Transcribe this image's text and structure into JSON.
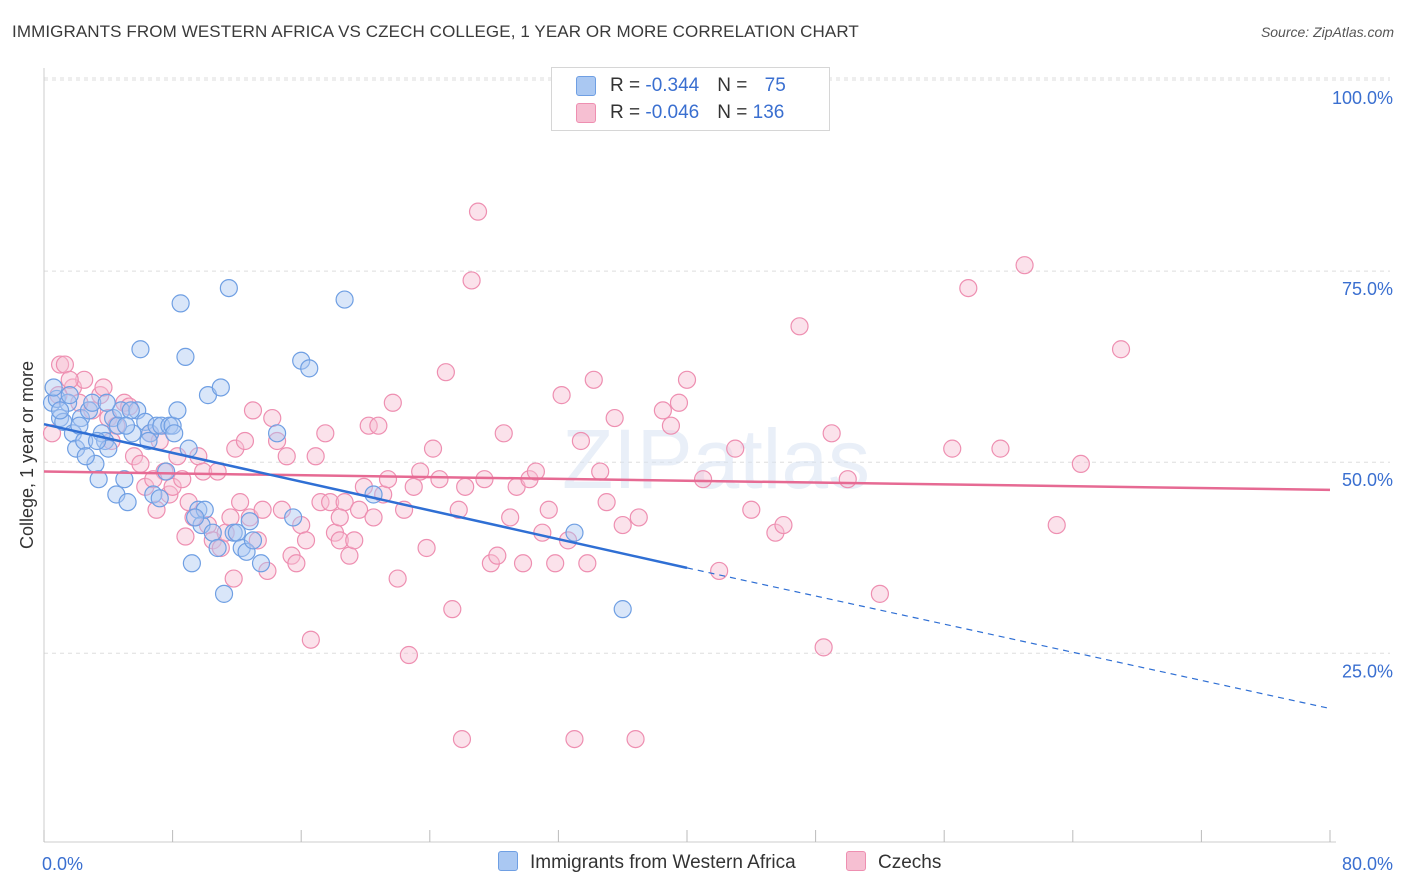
{
  "title": "IMMIGRANTS FROM WESTERN AFRICA VS CZECH COLLEGE, 1 YEAR OR MORE CORRELATION CHART",
  "source": "Source: ZipAtlas.com",
  "watermark": "ZIPatlas",
  "legend": {
    "rows": [
      {
        "r_label": "R = ",
        "r_value": "-0.344",
        "n_label": "N = ",
        "n_value": "75"
      },
      {
        "r_label": "R = ",
        "r_value": "-0.046",
        "n_label": "N = ",
        "n_value": "136"
      }
    ]
  },
  "colors": {
    "blue_fill": "#aac8f2",
    "blue_stroke": "#6f9fe3",
    "blue_line": "#2f6fd4",
    "pink_fill": "#f6bfd2",
    "pink_stroke": "#ee8fb1",
    "pink_line": "#e66a93",
    "axis_label": "#3a6fd0",
    "grid": "#dddddd"
  },
  "chart_data": {
    "type": "scatter",
    "title": "IMMIGRANTS FROM WESTERN AFRICA VS CZECH COLLEGE, 1 YEAR OR MORE CORRELATION CHART",
    "xlabel": "",
    "ylabel": "College, 1 year or more",
    "xlim": [
      0,
      80
    ],
    "ylim": [
      0,
      105
    ],
    "x_tick_labels": [
      "0.0%",
      "80.0%"
    ],
    "y_tick_labels": [
      "25.0%",
      "50.0%",
      "75.0%",
      "100.0%"
    ],
    "y_ticks": [
      25,
      50,
      75,
      100
    ],
    "grid": true,
    "legend_placement": "top-center",
    "series": [
      {
        "name": "Immigrants from Western Africa",
        "color": "blue",
        "trend": {
          "x0": 0,
          "y0": 57.2,
          "x1": 40,
          "y1": 38.4,
          "dash_to_x": 80,
          "dash_to_y": 20.0
        },
        "points": [
          [
            0.5,
            60
          ],
          [
            0.8,
            60.5
          ],
          [
            1.0,
            58
          ],
          [
            1.2,
            57.5
          ],
          [
            1.5,
            60
          ],
          [
            1.8,
            56
          ],
          [
            2.0,
            54
          ],
          [
            2.3,
            58
          ],
          [
            2.5,
            55
          ],
          [
            2.8,
            59
          ],
          [
            3.0,
            60
          ],
          [
            3.2,
            52
          ],
          [
            3.4,
            50
          ],
          [
            3.6,
            56
          ],
          [
            3.8,
            55
          ],
          [
            4.0,
            54
          ],
          [
            4.3,
            58
          ],
          [
            4.5,
            48
          ],
          [
            4.8,
            59
          ],
          [
            5.0,
            50
          ],
          [
            5.2,
            47
          ],
          [
            5.5,
            56
          ],
          [
            5.8,
            59
          ],
          [
            6.0,
            67
          ],
          [
            6.3,
            57.5
          ],
          [
            6.6,
            56
          ],
          [
            6.8,
            48
          ],
          [
            7.0,
            57
          ],
          [
            7.3,
            57
          ],
          [
            7.6,
            51
          ],
          [
            7.8,
            57
          ],
          [
            8.0,
            57
          ],
          [
            8.3,
            59
          ],
          [
            8.5,
            73
          ],
          [
            8.8,
            66
          ],
          [
            9.0,
            54
          ],
          [
            9.2,
            39
          ],
          [
            9.6,
            46
          ],
          [
            9.8,
            44
          ],
          [
            10.0,
            46
          ],
          [
            10.2,
            61
          ],
          [
            10.5,
            43
          ],
          [
            10.8,
            41
          ],
          [
            11.0,
            62
          ],
          [
            11.2,
            35
          ],
          [
            11.5,
            75
          ],
          [
            11.8,
            43
          ],
          [
            12.0,
            43
          ],
          [
            12.3,
            41
          ],
          [
            12.6,
            40.5
          ],
          [
            13.0,
            42
          ],
          [
            13.5,
            39
          ],
          [
            14.5,
            56
          ],
          [
            15.5,
            45
          ],
          [
            16.0,
            65.5
          ],
          [
            16.5,
            64.5
          ],
          [
            18.7,
            73.5
          ],
          [
            20.5,
            48
          ],
          [
            33.0,
            43
          ],
          [
            36.0,
            33
          ],
          [
            1.0,
            59
          ],
          [
            2.2,
            57
          ],
          [
            3.3,
            55
          ],
          [
            4.6,
            57
          ],
          [
            5.4,
            59
          ],
          [
            6.5,
            55
          ],
          [
            7.2,
            47.5
          ],
          [
            2.6,
            53
          ],
          [
            1.6,
            61
          ],
          [
            3.9,
            60
          ],
          [
            5.1,
            57
          ],
          [
            8.1,
            56
          ],
          [
            9.4,
            45
          ],
          [
            12.8,
            44.5
          ],
          [
            0.6,
            62
          ]
        ]
      },
      {
        "name": "Czechs",
        "color": "pink",
        "trend": {
          "x0": 0,
          "y0": 51.0,
          "x1": 80,
          "y1": 48.6
        },
        "points": [
          [
            0.5,
            56
          ],
          [
            1.0,
            65
          ],
          [
            1.3,
            65
          ],
          [
            1.8,
            62
          ],
          [
            2.5,
            63
          ],
          [
            3.0,
            59
          ],
          [
            3.5,
            61
          ],
          [
            4.0,
            58
          ],
          [
            4.5,
            57
          ],
          [
            5.0,
            60
          ],
          [
            5.3,
            59.5
          ],
          [
            5.6,
            53
          ],
          [
            6.0,
            52
          ],
          [
            6.3,
            49
          ],
          [
            6.6,
            56
          ],
          [
            7.0,
            46
          ],
          [
            7.2,
            55
          ],
          [
            7.5,
            51
          ],
          [
            7.8,
            48
          ],
          [
            8.0,
            49
          ],
          [
            8.3,
            53
          ],
          [
            8.6,
            50
          ],
          [
            9.0,
            47
          ],
          [
            9.3,
            45
          ],
          [
            9.6,
            53
          ],
          [
            9.9,
            51
          ],
          [
            10.2,
            44
          ],
          [
            10.5,
            42
          ],
          [
            10.8,
            51
          ],
          [
            11.0,
            41
          ],
          [
            11.3,
            43
          ],
          [
            11.6,
            45
          ],
          [
            11.9,
            54
          ],
          [
            12.2,
            47
          ],
          [
            12.5,
            55
          ],
          [
            12.8,
            45
          ],
          [
            13.0,
            59
          ],
          [
            13.3,
            42
          ],
          [
            13.6,
            46
          ],
          [
            13.9,
            38
          ],
          [
            14.2,
            58
          ],
          [
            14.5,
            55
          ],
          [
            14.8,
            46
          ],
          [
            15.1,
            53
          ],
          [
            15.4,
            40
          ],
          [
            15.7,
            39
          ],
          [
            16.0,
            44
          ],
          [
            16.3,
            42
          ],
          [
            16.6,
            29
          ],
          [
            16.9,
            53
          ],
          [
            17.2,
            47
          ],
          [
            17.5,
            56
          ],
          [
            17.8,
            47
          ],
          [
            18.1,
            43
          ],
          [
            18.4,
            42
          ],
          [
            18.7,
            47
          ],
          [
            19.0,
            40
          ],
          [
            19.3,
            42
          ],
          [
            19.6,
            46
          ],
          [
            19.9,
            49
          ],
          [
            20.2,
            57
          ],
          [
            20.5,
            45
          ],
          [
            20.8,
            57
          ],
          [
            21.1,
            48
          ],
          [
            21.4,
            50
          ],
          [
            21.7,
            60
          ],
          [
            22.0,
            37
          ],
          [
            22.4,
            46
          ],
          [
            22.7,
            27
          ],
          [
            23.0,
            49
          ],
          [
            23.4,
            51
          ],
          [
            23.8,
            41
          ],
          [
            24.2,
            54
          ],
          [
            24.6,
            50
          ],
          [
            25.0,
            64
          ],
          [
            25.4,
            33
          ],
          [
            25.8,
            46
          ],
          [
            26.2,
            49
          ],
          [
            26.6,
            76
          ],
          [
            27.0,
            85
          ],
          [
            27.4,
            50
          ],
          [
            27.8,
            39
          ],
          [
            28.2,
            40
          ],
          [
            28.6,
            56
          ],
          [
            29.0,
            45
          ],
          [
            29.4,
            49
          ],
          [
            29.8,
            39
          ],
          [
            30.2,
            50
          ],
          [
            30.6,
            51
          ],
          [
            31.0,
            43
          ],
          [
            31.4,
            46
          ],
          [
            31.8,
            39
          ],
          [
            32.2,
            61
          ],
          [
            32.6,
            42
          ],
          [
            33.0,
            16
          ],
          [
            33.4,
            55
          ],
          [
            33.8,
            39
          ],
          [
            34.2,
            63
          ],
          [
            34.6,
            51
          ],
          [
            35.0,
            47
          ],
          [
            36.0,
            44
          ],
          [
            37.0,
            45
          ],
          [
            38.5,
            59
          ],
          [
            39.0,
            57
          ],
          [
            39.5,
            60
          ],
          [
            40.0,
            63
          ],
          [
            41.0,
            50
          ],
          [
            42.0,
            38
          ],
          [
            43.0,
            54
          ],
          [
            44.0,
            46
          ],
          [
            45.5,
            43
          ],
          [
            46.0,
            44
          ],
          [
            47.0,
            70
          ],
          [
            48.5,
            28
          ],
          [
            49.0,
            56
          ],
          [
            50.0,
            50
          ],
          [
            52.0,
            35
          ],
          [
            56.5,
            54
          ],
          [
            57.5,
            75
          ],
          [
            59.5,
            54
          ],
          [
            61.0,
            78
          ],
          [
            63.0,
            44
          ],
          [
            64.5,
            52
          ],
          [
            67.0,
            67
          ],
          [
            35.5,
            58
          ],
          [
            26.0,
            16
          ],
          [
            36.8,
            16
          ],
          [
            11.8,
            37
          ],
          [
            8.8,
            42.5
          ],
          [
            18.4,
            45
          ],
          [
            1.6,
            63
          ],
          [
            2.2,
            60
          ],
          [
            0.9,
            61
          ],
          [
            4.2,
            55
          ],
          [
            6.8,
            50
          ],
          [
            3.7,
            62
          ]
        ]
      }
    ]
  }
}
